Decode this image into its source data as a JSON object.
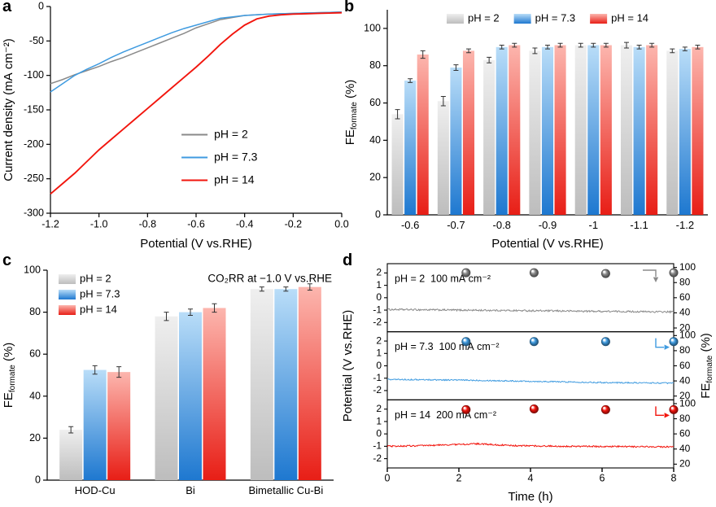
{
  "colors": {
    "ph2_line": "#8a8a8a",
    "ph73_line": "#3f9be0",
    "ph14_line": "#f2150d",
    "ph2_bar_top": "#efefef",
    "ph2_bar_bottom": "#bdbdbd",
    "ph73_bar_top": "#b9ddf8",
    "ph73_bar_bottom": "#1e78d0",
    "ph14_bar_top": "#fcb6ae",
    "ph14_bar_bottom": "#e81e16"
  },
  "chart_data": [
    {
      "panel": "a",
      "type": "line",
      "xlabel": "Potential (V vs.RHE)",
      "ylabel": "Current density (mA cm⁻²)",
      "xlim": [
        -1.2,
        0
      ],
      "ylim": [
        -300,
        0
      ],
      "xticks": [
        -1.2,
        -1.0,
        -0.8,
        -0.6,
        -0.4,
        -0.2,
        0.0
      ],
      "xtick_labels": [
        "-1.2",
        "-1.0",
        "-0.8",
        "-0.6",
        "-0.4",
        "-0.2",
        "0.0"
      ],
      "yticks": [
        0,
        -50,
        -100,
        -150,
        -200,
        -250,
        -300
      ],
      "legend_position": "bottom-right",
      "series": [
        {
          "name": "pH = 2",
          "color_key": "ph2_line",
          "x": [
            -1.2,
            -1.15,
            -1.1,
            -1.05,
            -1.0,
            -0.95,
            -0.9,
            -0.85,
            -0.8,
            -0.75,
            -0.7,
            -0.65,
            -0.6,
            -0.55,
            -0.5,
            -0.45,
            -0.4,
            -0.35,
            -0.3,
            -0.25,
            -0.2,
            -0.15,
            -0.1,
            -0.05,
            0
          ],
          "y": [
            -112,
            -106,
            -99,
            -93,
            -87,
            -80,
            -74,
            -67,
            -60,
            -53,
            -46,
            -39,
            -31,
            -25,
            -19,
            -16,
            -13,
            -12,
            -11,
            -10.5,
            -10,
            -9.5,
            -9,
            -8.5,
            -8
          ]
        },
        {
          "name": "pH = 7.3",
          "color_key": "ph73_line",
          "x": [
            -1.2,
            -1.15,
            -1.1,
            -1.05,
            -1.0,
            -0.95,
            -0.9,
            -0.85,
            -0.8,
            -0.75,
            -0.7,
            -0.65,
            -0.6,
            -0.55,
            -0.5,
            -0.45,
            -0.4,
            -0.35,
            -0.3,
            -0.25,
            -0.2,
            -0.15,
            -0.1,
            -0.05,
            0
          ],
          "y": [
            -124,
            -112,
            -100,
            -91,
            -83,
            -74,
            -66,
            -59,
            -52,
            -45,
            -38,
            -32,
            -27,
            -22,
            -17,
            -15,
            -13,
            -12,
            -11,
            -10.5,
            -10,
            -9.5,
            -9,
            -8.5,
            -8
          ]
        },
        {
          "name": "pH = 14",
          "color_key": "ph14_line",
          "x": [
            -1.2,
            -1.15,
            -1.1,
            -1.05,
            -1.0,
            -0.95,
            -0.9,
            -0.85,
            -0.8,
            -0.75,
            -0.7,
            -0.65,
            -0.6,
            -0.55,
            -0.5,
            -0.45,
            -0.4,
            -0.35,
            -0.3,
            -0.25,
            -0.2,
            -0.15,
            -0.1,
            -0.05,
            0
          ],
          "y": [
            -272,
            -257,
            -242,
            -225,
            -208,
            -193,
            -178,
            -163,
            -148,
            -133,
            -118,
            -103,
            -88,
            -72,
            -55,
            -40,
            -27,
            -18,
            -14,
            -12,
            -11,
            -10.5,
            -10,
            -9.5,
            -9
          ]
        }
      ]
    },
    {
      "panel": "b",
      "type": "bar",
      "xlabel": "Potential (V vs.RHE)",
      "ylabel": {
        "pre": "FE",
        "sub": "formate",
        "post": " (%)"
      },
      "categories": [
        "-0.6",
        "-0.7",
        "-0.8",
        "-0.9",
        "-1",
        "-1.1",
        "-1.2"
      ],
      "ylim": [
        0,
        110
      ],
      "yticks": [
        0,
        20,
        40,
        60,
        80,
        100
      ],
      "legend_position": "top",
      "series": [
        {
          "name": "pH = 2",
          "color_key": "ph2",
          "values": [
            54,
            61,
            83,
            88,
            91,
            91,
            88
          ],
          "errors": [
            2.5,
            2.5,
            1.5,
            1.5,
            1,
            1.5,
            1
          ]
        },
        {
          "name": "pH = 7.3",
          "color_key": "ph73",
          "values": [
            72,
            79,
            90,
            90,
            91,
            90,
            89
          ],
          "errors": [
            1,
            1.5,
            1,
            1,
            1,
            1,
            1
          ]
        },
        {
          "name": "pH = 14",
          "color_key": "ph14",
          "values": [
            86,
            88,
            91,
            91,
            91,
            91,
            90
          ],
          "errors": [
            2,
            1,
            1,
            1,
            1,
            1,
            1
          ]
        }
      ]
    },
    {
      "panel": "c",
      "type": "bar",
      "annotation": "CO₂RR at −1.0 V vs.RHE",
      "ylabel": {
        "pre": "FE",
        "sub": "formate",
        "post": " (%)"
      },
      "categories": [
        "HOD-Cu",
        "Bi",
        "Bimetallic Cu-Bi"
      ],
      "ylim": [
        0,
        100
      ],
      "yticks": [
        0,
        20,
        40,
        60,
        80,
        100
      ],
      "legend_position": "top-left",
      "series": [
        {
          "name": "pH = 2",
          "color_key": "ph2",
          "values": [
            24,
            78,
            91
          ],
          "errors": [
            1.5,
            2,
            1
          ]
        },
        {
          "name": "pH = 7.3",
          "color_key": "ph73",
          "values": [
            52.5,
            80,
            91
          ],
          "errors": [
            2,
            1.5,
            1
          ]
        },
        {
          "name": "pH = 14",
          "color_key": "ph14",
          "values": [
            51.5,
            82,
            92
          ],
          "errors": [
            2.5,
            2,
            1.5
          ]
        }
      ]
    },
    {
      "panel": "d",
      "type": "stability",
      "xlabel": "Time (h)",
      "ylabel_left": "Potential (V vs.RHE)",
      "ylabel_right": {
        "pre": "FE",
        "sub": "formate",
        "post": " (%)"
      },
      "xlim": [
        0,
        8
      ],
      "xticks": [
        0,
        2,
        4,
        6,
        8
      ],
      "left_ylim": [
        -2.75,
        2.75
      ],
      "left_yticks": [
        2,
        1,
        0,
        -1,
        -2
      ],
      "right_ylim": [
        15,
        105
      ],
      "right_yticks": [
        100,
        80,
        60,
        40,
        20
      ],
      "subpanels": [
        {
          "ph_label": "pH = 2",
          "current_label": "100 mA cm⁻²",
          "color_key": "ph2_line",
          "trace": [
            [
              0,
              -0.95
            ],
            [
              2,
              -1.0
            ],
            [
              4,
              -1.05
            ],
            [
              6,
              -1.1
            ],
            [
              8,
              -1.15
            ]
          ],
          "noise": 0.07,
          "fe_t": [
            2.2,
            4.1,
            6.1,
            8
          ],
          "fe_values": [
            93,
            93,
            92,
            93
          ],
          "arrow": "right-down"
        },
        {
          "ph_label": "pH = 7.3",
          "current_label": "100 mA cm⁻²",
          "color_key": "ph73_line",
          "trace": [
            [
              0,
              -1.1
            ],
            [
              2,
              -1.15
            ],
            [
              4,
              -1.25
            ],
            [
              6,
              -1.35
            ],
            [
              8,
              -1.4
            ]
          ],
          "noise": 0.05,
          "fe_t": [
            2.2,
            4.1,
            6.1,
            8
          ],
          "fe_values": [
            92,
            92,
            92,
            92
          ],
          "arrow": "down-right"
        },
        {
          "ph_label": "pH = 14",
          "current_label": "200 mA cm⁻²",
          "color_key": "ph14_line",
          "trace": [
            [
              0,
              -1.0
            ],
            [
              1,
              -0.95
            ],
            [
              2.5,
              -0.8
            ],
            [
              3.5,
              -0.95
            ],
            [
              5,
              -1.0
            ],
            [
              8,
              -1.05
            ]
          ],
          "noise": 0.06,
          "fe_t": [
            2.2,
            4.1,
            6.1,
            8
          ],
          "fe_values": [
            92,
            93,
            92,
            92
          ],
          "arrow": "down-right"
        }
      ]
    }
  ]
}
